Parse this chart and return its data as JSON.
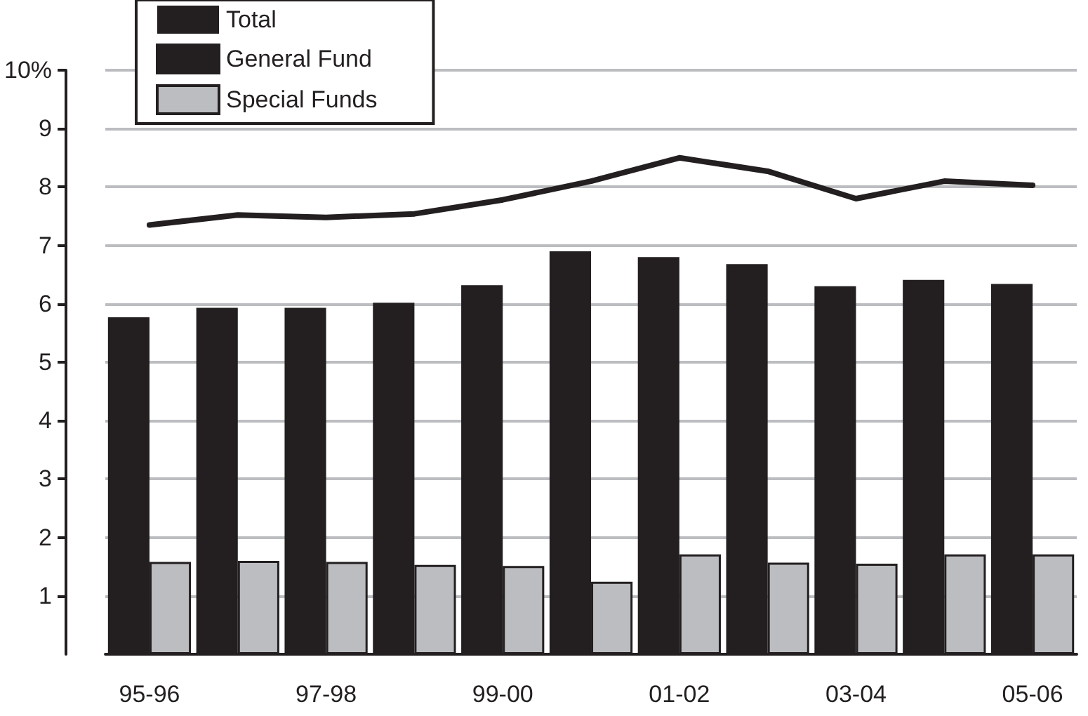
{
  "chart_data": {
    "type": "bar",
    "categories": [
      "95-96",
      null,
      "97-98",
      null,
      "99-00",
      null,
      "01-02",
      null,
      "03-04",
      null,
      "05-06"
    ],
    "series": [
      {
        "name": "Total",
        "type": "line",
        "color": "#231f20",
        "values": [
          7.35,
          7.52,
          7.48,
          7.54,
          7.78,
          8.1,
          8.5,
          8.27,
          7.8,
          8.1,
          8.03
        ]
      },
      {
        "name": "General Fund",
        "color": "#231f20",
        "values": [
          5.77,
          5.93,
          5.93,
          6.02,
          6.32,
          6.9,
          6.8,
          6.68,
          6.3,
          6.41,
          6.34
        ]
      },
      {
        "name": "Special Funds",
        "color": "#bcbdc0",
        "values": [
          1.58,
          1.6,
          1.58,
          1.53,
          1.51,
          1.24,
          1.71,
          1.57,
          1.55,
          1.71,
          1.71
        ]
      }
    ],
    "ylim": [
      0,
      10
    ],
    "yticks": [
      1,
      2,
      3,
      4,
      5,
      6,
      7,
      8,
      9,
      {
        "value": 10,
        "label": "10%"
      }
    ],
    "grid": "y",
    "legend": "top left",
    "marker": "none",
    "line_style": "solid"
  }
}
